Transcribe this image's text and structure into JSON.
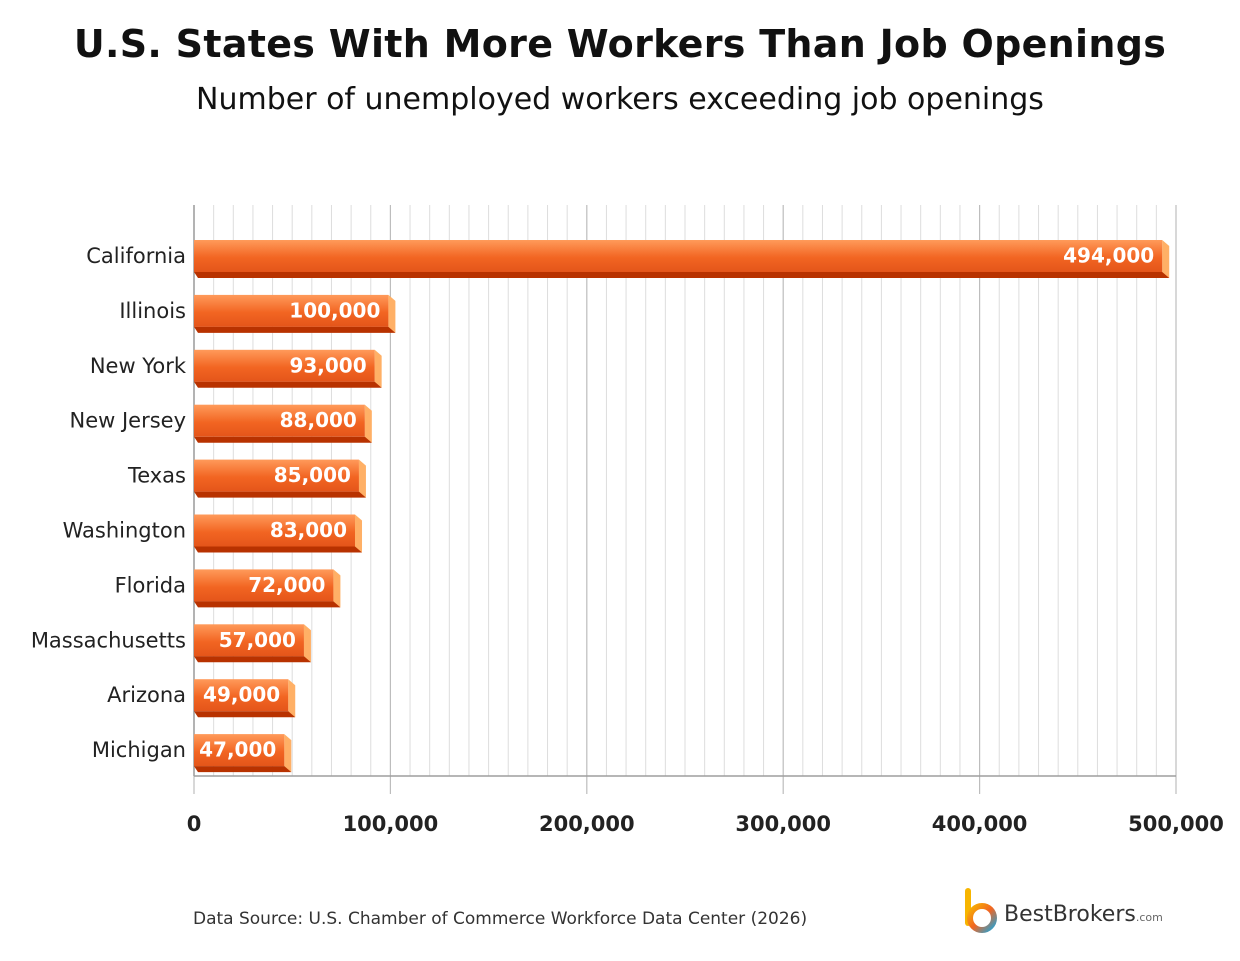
{
  "header": {
    "title": "U.S. States With More Workers Than Job Openings",
    "subtitle": "Number of unemployed workers exceeding job openings"
  },
  "footer": {
    "source": "Data Source: U.S. Chamber of Commerce Workforce Data Center (2026)",
    "brand_name": "BestBrokers",
    "brand_suffix": ".com"
  },
  "colors": {
    "bar_top": "#ff9a5a",
    "bar_main": "#f26522",
    "bar_bottom": "#b83200",
    "bar_cap": "#ffb066",
    "grid": "#dddddd",
    "grid_major": "#bdbdbd"
  },
  "chart_data": {
    "type": "bar",
    "orientation": "horizontal",
    "categories": [
      "California",
      "Illinois",
      "New York",
      "New Jersey",
      "Texas",
      "Washington",
      "Florida",
      "Massachusetts",
      "Arizona",
      "Michigan"
    ],
    "values": [
      494000,
      100000,
      93000,
      88000,
      85000,
      83000,
      72000,
      57000,
      49000,
      47000
    ],
    "value_labels": [
      "494,000",
      "100,000",
      "93,000",
      "88,000",
      "85,000",
      "83,000",
      "72,000",
      "57,000",
      "49,000",
      "47,000"
    ],
    "xlim": [
      0,
      500000
    ],
    "xticks": [
      0,
      100000,
      200000,
      300000,
      400000,
      500000
    ],
    "xtick_labels": [
      "0",
      "100,000",
      "200,000",
      "300,000",
      "400,000",
      "500,000"
    ],
    "grid": true,
    "xlabel": "",
    "ylabel": ""
  }
}
